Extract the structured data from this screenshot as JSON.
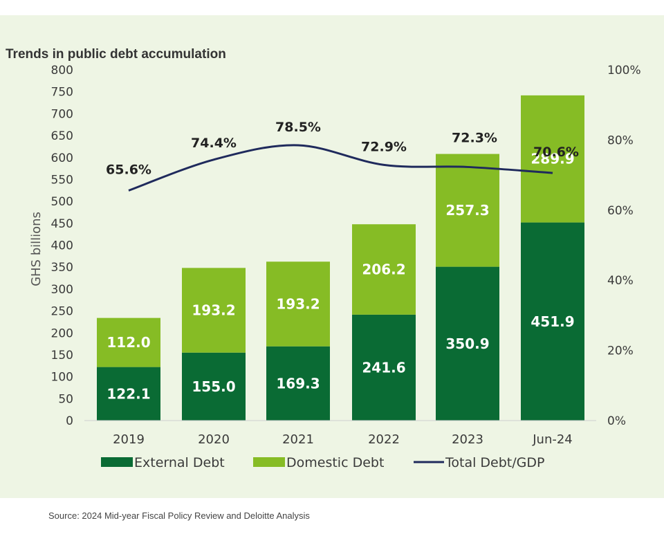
{
  "chart_data": {
    "type": "bar",
    "title": "Trends in public debt accumulation",
    "ylabel": "GHS billions",
    "categories": [
      "2019",
      "2020",
      "2021",
      "2022",
      "2023",
      "Jun-24"
    ],
    "series": [
      {
        "name": "External Debt",
        "values": [
          122.1,
          155.0,
          169.3,
          241.6,
          350.9,
          451.9
        ],
        "color": "#0a6b34",
        "labels": [
          "122.1",
          "155.0",
          "169.3",
          "241.6",
          "350.9",
          "451.9"
        ]
      },
      {
        "name": "Domestic Debt",
        "values": [
          112.0,
          193.2,
          193.2,
          206.2,
          257.3,
          289.9
        ],
        "color": "#86bc25",
        "labels": [
          "112.0",
          "193.2",
          "193.2",
          "206.2",
          "257.3",
          "289.9"
        ]
      }
    ],
    "line_series": {
      "name": "Total Debt/GDP",
      "values": [
        65.6,
        74.4,
        78.5,
        72.9,
        72.3,
        70.6
      ],
      "labels": [
        "65.6%",
        "74.4%",
        "78.5%",
        "72.9%",
        "72.3%",
        "70.6%"
      ],
      "color": "#1f2a5c",
      "axis": "right"
    },
    "ylim": [
      0,
      800
    ],
    "yticks": [
      "0",
      "50",
      "100",
      "150",
      "200",
      "250",
      "300",
      "350",
      "400",
      "450",
      "500",
      "550",
      "600",
      "650",
      "700",
      "750",
      "800"
    ],
    "y2lim": [
      0,
      100
    ],
    "y2ticks": [
      "0%",
      "20%",
      "40%",
      "60%",
      "80%",
      "100%"
    ],
    "grid": false,
    "legend_position": "bottom",
    "stacked": true
  },
  "source": "Source: 2024 Mid-year Fiscal Policy Review and Deloitte Analysis"
}
